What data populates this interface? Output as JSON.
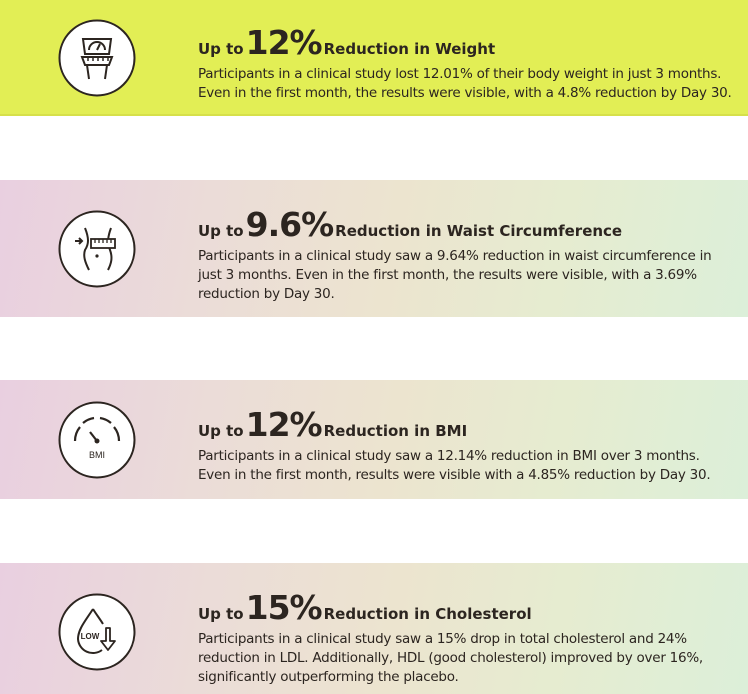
{
  "cards": [
    {
      "prefix": "Up to",
      "value": "12%",
      "suffix": "Reduction in Weight",
      "description": "Participants in a clinical study lost 12.01% of their body weight in just 3 months. Even in the first month, the results were visible, with a 4.8% reduction by Day 30.",
      "icon": "weight-scale-tape-icon"
    },
    {
      "prefix": "Up to",
      "value": "9.6%",
      "suffix": "Reduction in Waist Circumference",
      "description": "Participants in a clinical study saw a 9.64% reduction in waist circumference in just 3 months. Even in the first month, the results were visible, with a 3.69% reduction by Day 30.",
      "icon": "waist-measure-icon"
    },
    {
      "prefix": "Up to",
      "value": "12%",
      "suffix": "Reduction in BMI",
      "description": "Participants in a clinical study saw a 12.14% reduction in BMI over 3 months. Even in the first month, results were visible with a 4.85% reduction by Day 30.",
      "icon": "bmi-gauge-icon",
      "icon_label": "BMI"
    },
    {
      "prefix": "Up to",
      "value": "15%",
      "suffix": "Reduction in Cholesterol",
      "description": "Participants in a clinical study saw a 15% drop in total cholesterol and 24% reduction in LDL. Additionally, HDL (good cholesterol) improved by over 16%, significantly outperforming the placebo.",
      "icon": "cholesterol-drop-icon",
      "icon_label": "LOW"
    }
  ],
  "colors": {
    "highlight": "#e2ee55",
    "text": "#2c2520"
  }
}
